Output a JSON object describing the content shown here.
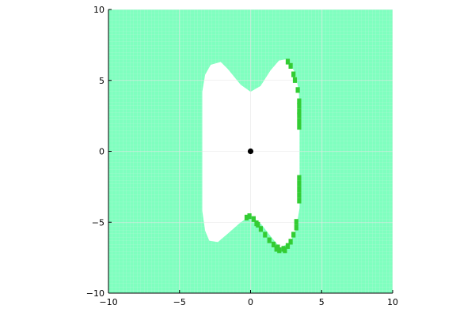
{
  "chart_data": {
    "type": "heatmap",
    "title": "",
    "xlabel": "",
    "ylabel": "",
    "xlim": [
      -10,
      10
    ],
    "ylim": [
      -10,
      10
    ],
    "grid": true,
    "x_ticks": [
      {
        "value": -10,
        "label": "−10"
      },
      {
        "value": -5,
        "label": "−5"
      },
      {
        "value": 0,
        "label": "0"
      },
      {
        "value": 5,
        "label": "5"
      },
      {
        "value": 10,
        "label": "10"
      }
    ],
    "y_ticks": [
      {
        "value": -10,
        "label": "−10"
      },
      {
        "value": -5,
        "label": "−5"
      },
      {
        "value": 0,
        "label": "0"
      },
      {
        "value": 5,
        "label": "5"
      },
      {
        "value": 10,
        "label": "10"
      }
    ],
    "cell_size": 0.25,
    "colors": {
      "outer": "#7fffbf",
      "outer_grid": "#a8f5d2",
      "inner": "#ffffff",
      "boundary": "#33cc33",
      "point": "#000000",
      "axis": "#000000",
      "gridline": "#e6e6e6"
    },
    "white_region": [
      [
        -3.4,
        4.2
      ],
      [
        -3.2,
        5.4
      ],
      [
        -2.8,
        6.1
      ],
      [
        -2.1,
        6.3
      ],
      [
        -1.6,
        5.8
      ],
      [
        -0.7,
        4.7
      ],
      [
        0.0,
        4.2
      ],
      [
        0.7,
        4.6
      ],
      [
        1.4,
        5.7
      ],
      [
        2.0,
        6.4
      ],
      [
        2.6,
        6.5
      ],
      [
        3.1,
        5.6
      ],
      [
        3.4,
        4.3
      ],
      [
        3.45,
        2.0
      ],
      [
        3.45,
        -4.0
      ],
      [
        3.2,
        -5.5
      ],
      [
        2.8,
        -6.4
      ],
      [
        2.1,
        -6.8
      ],
      [
        1.5,
        -6.1
      ],
      [
        0.8,
        -5.2
      ],
      [
        0.0,
        -4.5
      ],
      [
        -0.8,
        -5.1
      ],
      [
        -1.6,
        -5.8
      ],
      [
        -2.3,
        -6.4
      ],
      [
        -2.9,
        -6.3
      ],
      [
        -3.2,
        -5.6
      ],
      [
        -3.4,
        -4.2
      ]
    ],
    "boundary_cells": [
      [
        2.6,
        6.4
      ],
      [
        2.8,
        6.1
      ],
      [
        3.0,
        5.5
      ],
      [
        3.1,
        5.1
      ],
      [
        3.3,
        4.4
      ],
      [
        3.4,
        3.6
      ],
      [
        3.4,
        3.3
      ],
      [
        3.4,
        2.9
      ],
      [
        3.4,
        2.6
      ],
      [
        3.4,
        2.2
      ],
      [
        3.4,
        1.8
      ],
      [
        3.4,
        -1.8
      ],
      [
        3.4,
        -2.2
      ],
      [
        3.4,
        -2.6
      ],
      [
        3.4,
        -3.0
      ],
      [
        3.4,
        -3.4
      ],
      [
        3.2,
        -4.9
      ],
      [
        3.2,
        -5.3
      ],
      [
        3.0,
        -5.8
      ],
      [
        2.8,
        -6.3
      ],
      [
        2.6,
        -6.6
      ],
      [
        2.3,
        -6.8
      ],
      [
        2.0,
        -6.9
      ],
      [
        1.8,
        -6.8
      ],
      [
        1.6,
        -6.5
      ],
      [
        1.3,
        -6.2
      ],
      [
        1.0,
        -5.8
      ],
      [
        0.7,
        -5.4
      ],
      [
        0.4,
        -5.0
      ],
      [
        0.2,
        -4.7
      ],
      [
        -0.1,
        -4.5
      ],
      [
        -0.3,
        -4.6
      ],
      [
        0.5,
        -5.1
      ],
      [
        1.9,
        -6.7
      ],
      [
        2.4,
        -6.9
      ]
    ],
    "point": {
      "x": 0,
      "y": 0
    }
  }
}
